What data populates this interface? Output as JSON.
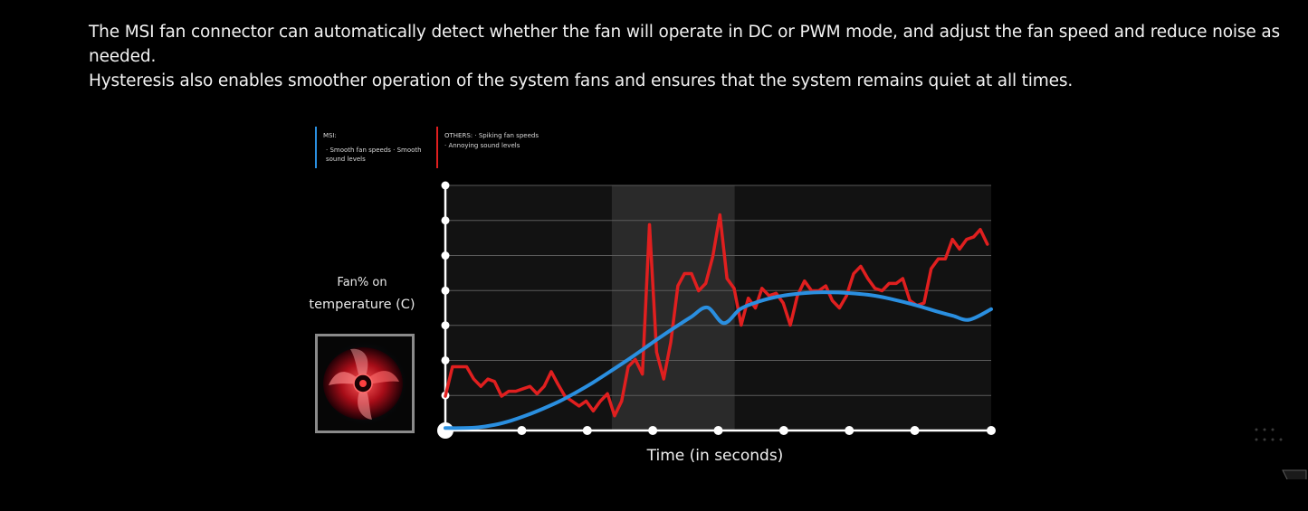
{
  "intro": {
    "line1": "The MSI fan connector can automatically detect whether the fan will operate in DC or PWM mode, and adjust the fan speed and reduce noise as needed.",
    "line2": "Hysteresis also enables smoother operation of the system fans and ensures that the system remains quiet at all times."
  },
  "legend": {
    "msi": {
      "title": "MSI:",
      "desc": "· Smooth fan speeds · Smooth sound levels",
      "color": "#2a8fe0"
    },
    "others": {
      "title": "OTHERS:",
      "desc": "· Spiking fan speeds · Annoying sound levels",
      "color": "#e01f1f"
    }
  },
  "y_label": {
    "line1": "Fan% on",
    "line2": "temperature (C)"
  },
  "x_label": "Time (in seconds)",
  "colors": {
    "background": "#000000",
    "plot_bg": "#121212",
    "highlight": "#2a2a2a",
    "grid": "#5a5a5a",
    "axis": "#ffffff"
  },
  "fan_image": {
    "icon": "red-fan-icon",
    "border": "#8a8a8a"
  },
  "chart_data": {
    "type": "line",
    "xlim": [
      0,
      100
    ],
    "ylim": [
      0,
      100
    ],
    "x_ticks": [
      0,
      14,
      26,
      38,
      50,
      62,
      74,
      86,
      100
    ],
    "y_ticks": [
      0,
      14.3,
      28.6,
      42.9,
      57.1,
      71.4,
      85.7,
      100
    ],
    "highlight_range": [
      30.5,
      53
    ],
    "grid": true,
    "series": [
      {
        "name": "MSI",
        "color": "#2a8fe0",
        "x": [
          0,
          3,
          6,
          9,
          12,
          15,
          18,
          21,
          24,
          27,
          30,
          33,
          36,
          39,
          42,
          45,
          48,
          51,
          54,
          57,
          60,
          63,
          66,
          69,
          72,
          75,
          78,
          81,
          84,
          87,
          90,
          93,
          96,
          100
        ],
        "values": [
          1,
          1,
          1.3,
          2.3,
          4,
          6.3,
          9,
          12,
          15.6,
          19.5,
          23.8,
          28.2,
          32.8,
          37.5,
          42,
          46.3,
          50.2,
          43.8,
          49.5,
          52.3,
          54.2,
          55.4,
          56.1,
          56.4,
          56.3,
          55.9,
          55.2,
          54,
          52.4,
          50.6,
          48.6,
          46.8,
          45.2,
          49.5
        ]
      },
      {
        "name": "OTHERS",
        "color": "#e01f1f",
        "x": [
          0,
          1.3,
          2.6,
          3.9,
          5.2,
          6.5,
          7.8,
          9,
          10.3,
          11.6,
          12.9,
          14.2,
          15.5,
          16.8,
          18.1,
          19.4,
          20.6,
          21.9,
          23.2,
          24.5,
          25.8,
          27.1,
          28.4,
          29.7,
          31,
          32.3,
          33.5,
          34.8,
          36.1,
          37.4,
          38.7,
          40,
          41.3,
          42.6,
          43.8,
          45.1,
          46.4,
          47.7,
          49,
          50.3,
          51.6,
          52.9,
          54.2,
          55.5,
          56.8,
          58,
          59.3,
          60.6,
          61.9,
          63.2,
          64.5,
          65.8,
          67.1,
          68.4,
          69.7,
          70.9,
          72.2,
          73.5,
          74.8,
          76.1,
          77.4,
          78.7,
          80,
          81.3,
          82.6,
          83.8,
          85.1,
          86.4,
          87.7,
          89,
          90.3,
          91.6,
          92.9,
          94.2,
          95.5,
          96.8,
          98,
          99.3
        ],
        "values": [
          14,
          26,
          26,
          26,
          21,
          18,
          21,
          20,
          14,
          16,
          16,
          17,
          18,
          15,
          18,
          24,
          19,
          14,
          12,
          10,
          12,
          8,
          12,
          15,
          6,
          12,
          26,
          29,
          23,
          84,
          32,
          21,
          36,
          59,
          64,
          64,
          57,
          60,
          71,
          88,
          62,
          58,
          43,
          54,
          50,
          58,
          55,
          56,
          52,
          43,
          55,
          61,
          57,
          57,
          59,
          53,
          50,
          55,
          64,
          67,
          62,
          58,
          57,
          60,
          60,
          62,
          53,
          51,
          52,
          66,
          70,
          70,
          78,
          74,
          78,
          79,
          82,
          76
        ]
      }
    ]
  }
}
